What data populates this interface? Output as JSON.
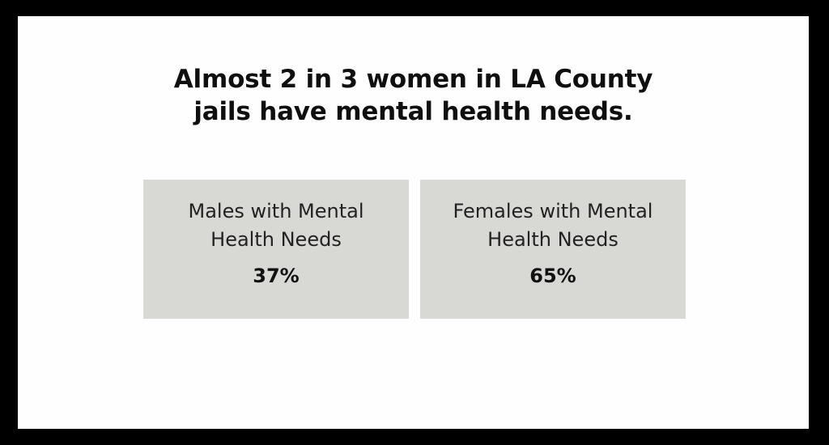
{
  "headline": {
    "line1": "Almost 2 in 3 women in LA County",
    "line2": "jails have mental health needs."
  },
  "stats": [
    {
      "label_line1": "Males with Mental",
      "label_line2": "Health Needs",
      "value": "37%",
      "fraction": 0.37
    },
    {
      "label_line1": "Females with Mental",
      "label_line2": "Health Needs",
      "value": "65%",
      "fraction": 0.65
    }
  ],
  "colors": {
    "frame": "#000000",
    "card_background": "#fefefe",
    "stat_box_background": "#d8d8d4",
    "text": "#111111"
  }
}
